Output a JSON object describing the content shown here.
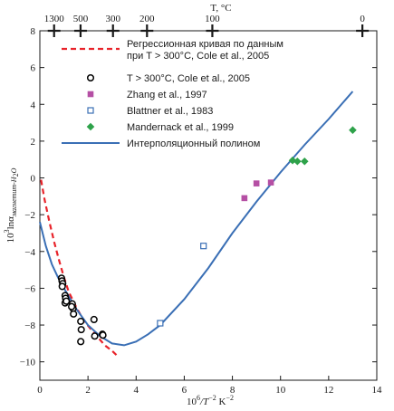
{
  "chart_data": {
    "type": "scatter",
    "xlabel_main": "10",
    "xlabel_sup1": "6",
    "xlabel_mid": "/T",
    "xlabel_sup2": "−2",
    "xlabel_unit": " K",
    "xlabel_sup3": "−2",
    "ylabel_main": "10",
    "ylabel_sup": "3",
    "ylabel_ln": "lnα",
    "ylabel_sub": "магнетит-H",
    "ylabel_sub2": "2",
    "ylabel_sub3": "O",
    "top_axis_label": "T, °C",
    "xlim": [
      0,
      14
    ],
    "ylim": [
      -11,
      8
    ],
    "x_ticks": [
      0,
      2,
      4,
      6,
      8,
      10,
      12,
      14
    ],
    "x_tick_labels": [
      "0",
      "2",
      "4",
      "6",
      "8",
      "10",
      "12",
      "14"
    ],
    "y_ticks": [
      -10,
      -8,
      -6,
      -4,
      -2,
      0,
      2,
      4,
      6,
      8
    ],
    "y_tick_labels": [
      "−10",
      "−8",
      "−6",
      "−4",
      "−2",
      "0",
      "2",
      "4",
      "6",
      "8"
    ],
    "top_ticks": [
      {
        "x": 0.5917,
        "label": "1300"
      },
      {
        "x": 1.6914,
        "label": "500"
      },
      {
        "x": 3.0385,
        "label": "300"
      },
      {
        "x": 4.452,
        "label": "200"
      },
      {
        "x": 7.1669,
        "label": "100"
      },
      {
        "x": 13.4018,
        "label": "0"
      }
    ],
    "legend": [
      {
        "label": "Регрессионная кривая по данным",
        "label2": "при T > 300°C, Cole et al., 2005",
        "marker": "dashed-line",
        "color": "#e8232a"
      },
      {
        "label": "T > 300°C, Cole et al., 2005",
        "marker": "open-circle",
        "color": "#000000"
      },
      {
        "label": "Zhang et al., 1997",
        "marker": "filled-square",
        "color": "#b54fa4"
      },
      {
        "label": "Blattner et al., 1983",
        "marker": "open-square",
        "color": "#3a6fb5"
      },
      {
        "label": "Mandernack et al., 1999",
        "marker": "filled-diamond",
        "color": "#2ea24a"
      },
      {
        "label": "Интерполяционный полином",
        "marker": "solid-line",
        "color": "#3a6fb5"
      }
    ],
    "series": [
      {
        "name": "T > 300°C, Cole et al., 2005",
        "marker": "open-circle",
        "color": "#000000",
        "points": [
          [
            0.9,
            -5.45
          ],
          [
            0.92,
            -5.6
          ],
          [
            0.95,
            -5.75
          ],
          [
            0.93,
            -5.9
          ],
          [
            1.05,
            -6.4
          ],
          [
            1.07,
            -6.55
          ],
          [
            1.05,
            -6.8
          ],
          [
            1.1,
            -6.7
          ],
          [
            1.35,
            -6.85
          ],
          [
            1.38,
            -7.1
          ],
          [
            1.4,
            -7.4
          ],
          [
            1.32,
            -7.0
          ],
          [
            1.7,
            -7.8
          ],
          [
            1.72,
            -8.25
          ],
          [
            1.7,
            -8.9
          ],
          [
            2.25,
            -7.7
          ],
          [
            2.28,
            -8.6
          ],
          [
            2.6,
            -8.5
          ],
          [
            2.62,
            -8.55
          ]
        ]
      },
      {
        "name": "Zhang et al., 1997",
        "marker": "filled-square",
        "color": "#b54fa4",
        "points": [
          [
            8.5,
            -1.1
          ],
          [
            9.0,
            -0.3
          ],
          [
            9.6,
            -0.25
          ]
        ]
      },
      {
        "name": "Blattner et al., 1983",
        "marker": "open-square",
        "color": "#3a6fb5",
        "points": [
          [
            5.0,
            -7.9
          ],
          [
            6.8,
            -3.7
          ]
        ]
      },
      {
        "name": "Mandernack et al., 1999",
        "marker": "filled-diamond",
        "color": "#2ea24a",
        "points": [
          [
            10.5,
            0.95
          ],
          [
            10.7,
            0.9
          ],
          [
            11.0,
            0.9
          ],
          [
            13.0,
            2.6
          ]
        ]
      }
    ],
    "curves": [
      {
        "name": "Регрессионная кривая по данным при T > 300°C, Cole et al., 2005",
        "style": "dashed",
        "color": "#e8232a",
        "points": [
          [
            0.05,
            -0.1
          ],
          [
            0.2,
            -1.2
          ],
          [
            0.4,
            -2.4
          ],
          [
            0.6,
            -3.5
          ],
          [
            0.8,
            -4.5
          ],
          [
            1.0,
            -5.4
          ],
          [
            1.2,
            -6.2
          ],
          [
            1.5,
            -7.0
          ],
          [
            1.8,
            -7.7
          ],
          [
            2.1,
            -8.2
          ],
          [
            2.4,
            -8.65
          ],
          [
            2.7,
            -9.1
          ],
          [
            3.0,
            -9.4
          ],
          [
            3.2,
            -9.65
          ]
        ]
      },
      {
        "name": "Интерполяционный полином",
        "style": "solid",
        "color": "#3a6fb5",
        "points": [
          [
            0.0,
            -2.4
          ],
          [
            0.25,
            -3.7
          ],
          [
            0.5,
            -4.7
          ],
          [
            0.75,
            -5.4
          ],
          [
            1.0,
            -6.0
          ],
          [
            1.5,
            -7.1
          ],
          [
            2.0,
            -8.0
          ],
          [
            2.5,
            -8.6
          ],
          [
            3.0,
            -9.0
          ],
          [
            3.5,
            -9.1
          ],
          [
            4.0,
            -8.9
          ],
          [
            4.5,
            -8.5
          ],
          [
            5.0,
            -8.0
          ],
          [
            6.0,
            -6.6
          ],
          [
            7.0,
            -4.9
          ],
          [
            8.0,
            -3.0
          ],
          [
            9.0,
            -1.3
          ],
          [
            10.0,
            0.3
          ],
          [
            11.0,
            1.8
          ],
          [
            12.0,
            3.2
          ],
          [
            13.0,
            4.7
          ]
        ]
      }
    ]
  }
}
